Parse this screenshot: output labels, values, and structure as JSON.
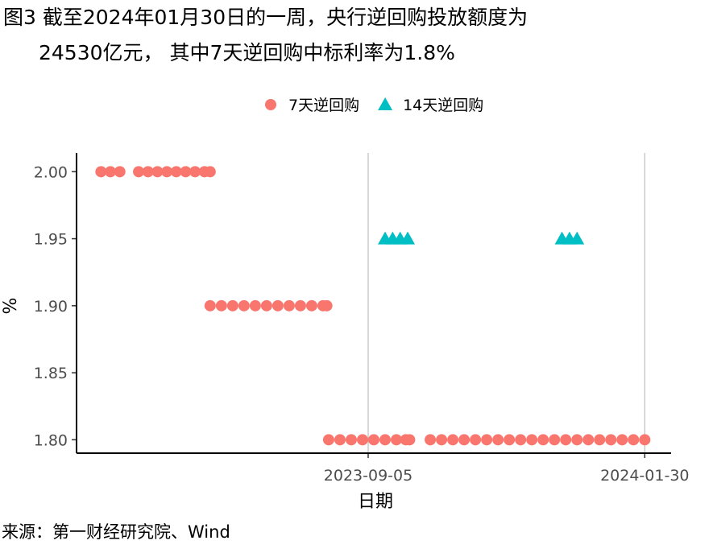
{
  "chart_data": {
    "type": "scatter",
    "title": [
      "图3  截至2024年01月30日的一周，央行逆回购投放额度为",
      "24530亿元， 其中7天逆回购中标利率为1.8%"
    ],
    "x_label": "日期",
    "y_label": "%",
    "source": "来源：第一财经研究院、Wind",
    "xlim": [
      "2023-04-03",
      "2024-02-13"
    ],
    "xticks": [
      "2023-09-05",
      "2024-01-30"
    ],
    "ylim": [
      1.79,
      2.014
    ],
    "yticks": [
      {
        "value": 1.8,
        "label": "1.80"
      },
      {
        "value": 1.85,
        "label": "1.85"
      },
      {
        "value": 1.9,
        "label": "1.90"
      },
      {
        "value": 1.95,
        "label": "1.95"
      },
      {
        "value": 2,
        "label": "2.00"
      }
    ],
    "grid": "x-major",
    "legend": "top",
    "series": [
      {
        "name": "7天逆回购",
        "color": "#f8766d",
        "marker": "circle",
        "x": [
          "2023-04-16",
          "2023-04-21",
          "2023-04-26",
          "2023-05-06",
          "2023-05-11",
          "2023-05-16",
          "2023-05-21",
          "2023-05-26",
          "2023-05-31",
          "2023-06-05",
          "2023-06-10",
          "2023-06-13",
          "2023-06-13",
          "2023-06-19",
          "2023-06-25",
          "2023-07-01",
          "2023-07-07",
          "2023-07-13",
          "2023-07-19",
          "2023-07-25",
          "2023-07-31",
          "2023-08-06",
          "2023-08-12",
          "2023-08-14",
          "2023-08-15",
          "2023-08-21",
          "2023-08-27",
          "2023-09-02",
          "2023-09-08",
          "2023-09-14",
          "2023-09-20",
          "2023-09-25",
          "2023-09-27",
          "2023-10-08",
          "2023-10-14",
          "2023-10-20",
          "2023-10-26",
          "2023-11-01",
          "2023-11-07",
          "2023-11-13",
          "2023-11-19",
          "2023-11-25",
          "2023-12-01",
          "2023-12-07",
          "2023-12-13",
          "2023-12-19",
          "2023-12-25",
          "2023-12-31",
          "2024-01-06",
          "2024-01-12",
          "2024-01-18",
          "2024-01-24",
          "2024-01-30"
        ],
        "values": [
          2,
          2,
          2,
          2,
          2,
          2,
          2,
          2,
          2,
          2,
          2,
          2,
          1.9,
          1.9,
          1.9,
          1.9,
          1.9,
          1.9,
          1.9,
          1.9,
          1.9,
          1.9,
          1.9,
          1.9,
          1.8,
          1.8,
          1.8,
          1.8,
          1.8,
          1.8,
          1.8,
          1.8,
          1.8,
          1.8,
          1.8,
          1.8,
          1.8,
          1.8,
          1.8,
          1.8,
          1.8,
          1.8,
          1.8,
          1.8,
          1.8,
          1.8,
          1.8,
          1.8,
          1.8,
          1.8,
          1.8,
          1.8,
          1.8
        ]
      },
      {
        "name": "14天逆回购",
        "color": "#00bfc4",
        "marker": "triangle",
        "x": [
          "2023-09-14",
          "2023-09-18",
          "2023-09-22",
          "2023-09-26",
          "2023-12-17",
          "2023-12-21",
          "2023-12-25"
        ],
        "values": [
          1.95,
          1.95,
          1.95,
          1.95,
          1.95,
          1.95,
          1.95
        ]
      }
    ]
  }
}
